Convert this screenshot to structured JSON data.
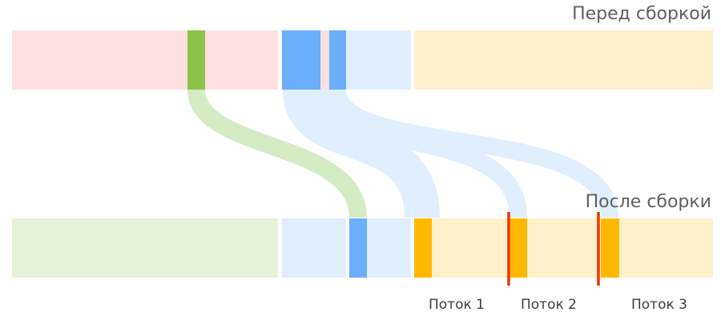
{
  "labels": {
    "before": "Перед сборкой",
    "after": "После сборки"
  },
  "threads": [
    "Поток 1",
    "Поток 2",
    "Поток 3"
  ],
  "colors": {
    "red_region": "#ffe0e0",
    "green": "#8bc34a",
    "green_light": "#e5f2da",
    "green_flow": "#d5ebc4",
    "blue": "#6aaefc",
    "blue_light": "#e0eefd",
    "yellow_light": "#fff0cc",
    "yellow": "#ffb800",
    "divider": "#ee3300"
  }
}
